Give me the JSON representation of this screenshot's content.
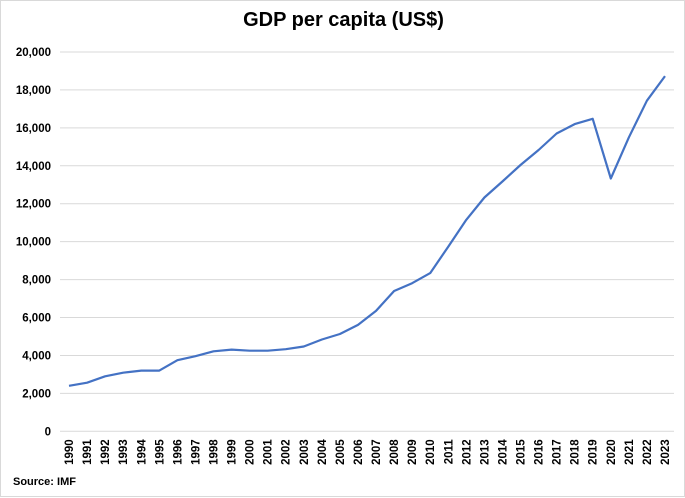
{
  "chart_data": {
    "type": "line",
    "title": "GDP per capita (US$)",
    "source": "Source: IMF",
    "xlabel": "",
    "ylabel": "",
    "ylim": [
      0,
      20000
    ],
    "yticks": [
      0,
      2000,
      4000,
      6000,
      8000,
      10000,
      12000,
      14000,
      16000,
      18000,
      20000
    ],
    "ytick_labels": [
      "0",
      "2,000",
      "4,000",
      "6,000",
      "8,000",
      "10,000",
      "12,000",
      "14,000",
      "16,000",
      "18,000",
      "20,000"
    ],
    "grid": true,
    "line_color": "#4472c4",
    "categories": [
      "1990",
      "1991",
      "1992",
      "1993",
      "1994",
      "1995",
      "1996",
      "1997",
      "1998",
      "1999",
      "2000",
      "2001",
      "2002",
      "2003",
      "2004",
      "2005",
      "2006",
      "2007",
      "2008",
      "2009",
      "2010",
      "2011",
      "2012",
      "2013",
      "2014",
      "2015",
      "2016",
      "2017",
      "2018",
      "2019",
      "2020",
      "2021",
      "2022",
      "2023"
    ],
    "values": [
      2400,
      2560,
      2900,
      3090,
      3200,
      3200,
      3750,
      3960,
      4220,
      4310,
      4250,
      4250,
      4330,
      4470,
      4840,
      5130,
      5610,
      6350,
      7400,
      7810,
      8340,
      9740,
      11150,
      12330,
      13170,
      14040,
      14830,
      15700,
      16200,
      16480,
      13330,
      15500,
      17430,
      18730
    ]
  }
}
